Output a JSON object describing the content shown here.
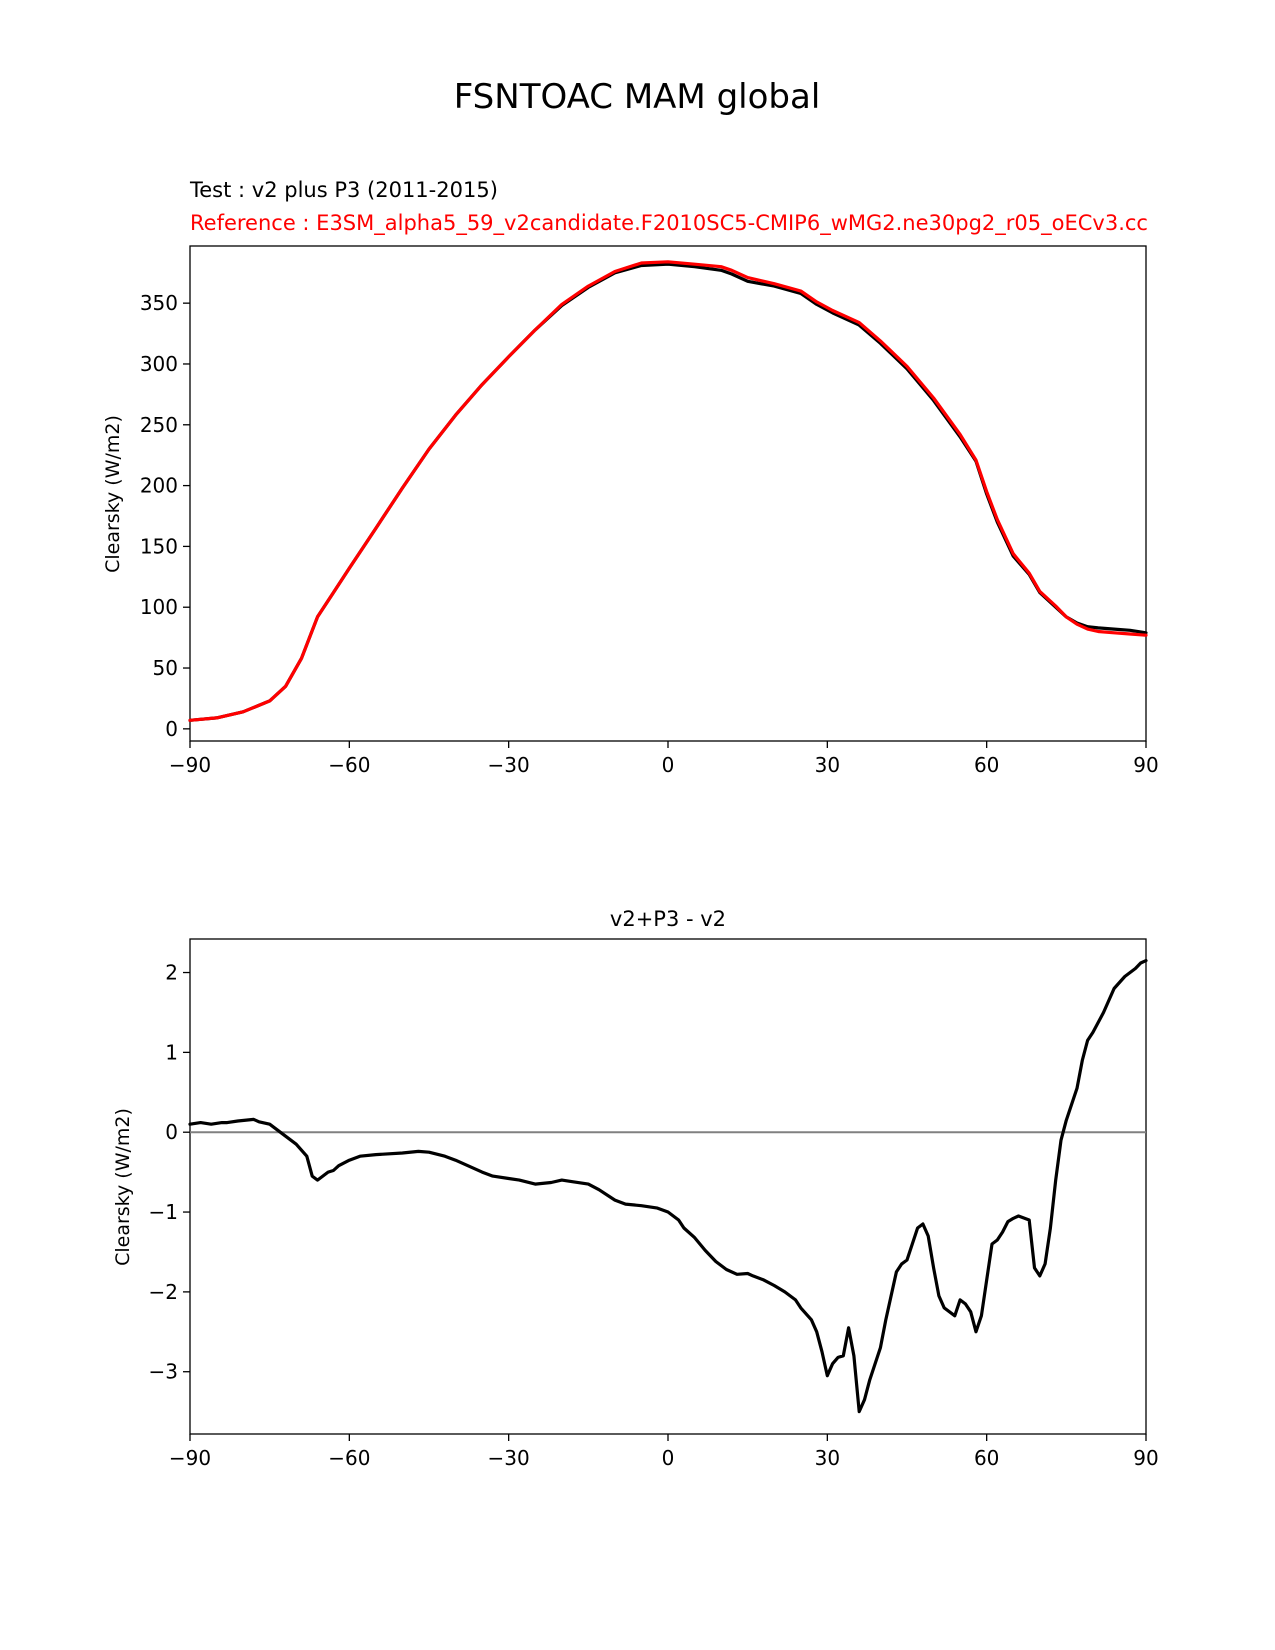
{
  "figure": {
    "suptitle": "FSNTOAC MAM global"
  },
  "chart_data": [
    {
      "type": "line",
      "title_test": "Test : v2 plus P3 (2011-2015)",
      "title_reference": "Reference : E3SM_alpha5_59_v2candidate.F2010SC5-CMIP6_wMG2.ne30pg2_r05_oECv3.cc",
      "xlabel": "",
      "ylabel": "Clearsky (W/m2)",
      "xlim": [
        -90,
        90
      ],
      "ylim": [
        -10,
        397
      ],
      "xticks": [
        -90,
        -60,
        -30,
        0,
        30,
        60,
        90
      ],
      "xtick_labels": [
        "−90",
        "−60",
        "−30",
        "0",
        "30",
        "60",
        "90"
      ],
      "yticks": [
        0,
        50,
        100,
        150,
        200,
        250,
        300,
        350
      ],
      "grid": false,
      "series": [
        {
          "color": "#000000",
          "x": [
            -90,
            -85,
            -80,
            -75,
            -72,
            -69,
            -66,
            -63,
            -60,
            -55,
            -50,
            -45,
            -40,
            -35,
            -30,
            -25,
            -20,
            -15,
            -10,
            -5,
            0,
            5,
            10,
            12,
            15,
            20,
            25,
            28,
            31,
            33,
            36,
            40,
            45,
            50,
            55,
            58,
            60,
            62,
            65,
            68,
            70,
            73,
            75,
            77,
            79,
            81,
            84,
            87,
            90
          ],
          "y": [
            7,
            9,
            14,
            23,
            35,
            58,
            92,
            112,
            132,
            165,
            198,
            230,
            258,
            283,
            306,
            328,
            348,
            363,
            375,
            381,
            382,
            380,
            377,
            374,
            368,
            364,
            358,
            349,
            342,
            338,
            332,
            317,
            296,
            270,
            240,
            220,
            193,
            170,
            142,
            127,
            112,
            100,
            92,
            87,
            84,
            83,
            82,
            81,
            79
          ]
        },
        {
          "color": "#ff0000",
          "x": [
            -90,
            -85,
            -80,
            -75,
            -72,
            -69,
            -66,
            -63,
            -60,
            -55,
            -50,
            -45,
            -40,
            -35,
            -30,
            -25,
            -20,
            -15,
            -10,
            -5,
            0,
            5,
            10,
            12,
            15,
            20,
            25,
            28,
            31,
            33,
            36,
            40,
            45,
            50,
            55,
            58,
            60,
            62,
            65,
            68,
            70,
            73,
            75,
            77,
            79,
            81,
            84,
            87,
            90
          ],
          "y": [
            7,
            9,
            14,
            23,
            35,
            58,
            92,
            112,
            132,
            165,
            198,
            230,
            258,
            283,
            306,
            328,
            349,
            364,
            376,
            383,
            384,
            382,
            380,
            377,
            371,
            366,
            360,
            351,
            344,
            340,
            334,
            319,
            298,
            272,
            242,
            221,
            195,
            172,
            144,
            128,
            113,
            101,
            92,
            86,
            82,
            80,
            79,
            78,
            77
          ]
        }
      ]
    },
    {
      "type": "line",
      "title": "v2+P3 - v2",
      "xlabel": "",
      "ylabel": "Clearsky (W/m2)",
      "xlim": [
        -90,
        90
      ],
      "ylim": [
        -3.78,
        2.42
      ],
      "xticks": [
        -90,
        -60,
        -30,
        0,
        30,
        60,
        90
      ],
      "xtick_labels": [
        "−90",
        "−60",
        "−30",
        "0",
        "30",
        "60",
        "90"
      ],
      "yticks": [
        2,
        1,
        0,
        -1,
        -2,
        -3
      ],
      "ytick_labels": [
        "2",
        "1",
        "0",
        "−1",
        "−2",
        "−3"
      ],
      "grid": false,
      "zero_line": 0,
      "series": [
        {
          "color": "#000000",
          "x": [
            -90,
            -88,
            -86,
            -84,
            -83,
            -81,
            -78,
            -77,
            -75,
            -74,
            -72,
            -70,
            -68,
            -67,
            -66,
            -65,
            -64,
            -63,
            -62,
            -60,
            -58,
            -55,
            -50,
            -47,
            -45,
            -42,
            -40,
            -35,
            -33,
            -30,
            -28,
            -25,
            -22,
            -20,
            -18,
            -15,
            -13,
            -10,
            -8,
            -5,
            -2,
            0,
            2,
            3,
            5,
            7,
            9,
            11,
            13,
            15,
            16,
            18,
            20,
            22,
            24,
            25,
            27,
            28,
            29,
            30,
            31,
            32,
            33,
            34,
            35,
            36,
            37,
            38,
            40,
            41,
            43,
            44,
            45,
            46,
            47,
            48,
            49,
            50,
            51,
            52,
            54,
            55,
            56,
            57,
            58,
            59,
            60,
            61,
            62,
            63,
            64,
            65,
            66,
            68,
            69,
            70,
            71,
            72,
            73,
            74,
            75,
            77,
            78,
            79,
            80,
            82,
            84,
            86,
            88,
            89,
            90
          ],
          "y": [
            0.1,
            0.12,
            0.1,
            0.12,
            0.12,
            0.14,
            0.16,
            0.13,
            0.1,
            0.05,
            -0.05,
            -0.15,
            -0.3,
            -0.55,
            -0.6,
            -0.55,
            -0.5,
            -0.48,
            -0.42,
            -0.35,
            -0.3,
            -0.28,
            -0.26,
            -0.24,
            -0.25,
            -0.3,
            -0.35,
            -0.5,
            -0.55,
            -0.58,
            -0.6,
            -0.65,
            -0.63,
            -0.6,
            -0.62,
            -0.65,
            -0.72,
            -0.85,
            -0.9,
            -0.92,
            -0.95,
            -1.0,
            -1.1,
            -1.2,
            -1.32,
            -1.48,
            -1.62,
            -1.72,
            -1.78,
            -1.77,
            -1.8,
            -1.85,
            -1.92,
            -2.0,
            -2.1,
            -2.2,
            -2.35,
            -2.5,
            -2.75,
            -3.05,
            -2.9,
            -2.82,
            -2.8,
            -2.45,
            -2.8,
            -3.5,
            -3.35,
            -3.1,
            -2.7,
            -2.35,
            -1.75,
            -1.65,
            -1.6,
            -1.4,
            -1.2,
            -1.15,
            -1.3,
            -1.7,
            -2.05,
            -2.2,
            -2.3,
            -2.1,
            -2.15,
            -2.25,
            -2.5,
            -2.3,
            -1.85,
            -1.4,
            -1.35,
            -1.25,
            -1.12,
            -1.08,
            -1.05,
            -1.1,
            -1.7,
            -1.8,
            -1.65,
            -1.2,
            -0.6,
            -0.1,
            0.15,
            0.55,
            0.9,
            1.15,
            1.25,
            1.5,
            1.8,
            1.95,
            2.05,
            2.12,
            2.15
          ]
        }
      ]
    }
  ]
}
